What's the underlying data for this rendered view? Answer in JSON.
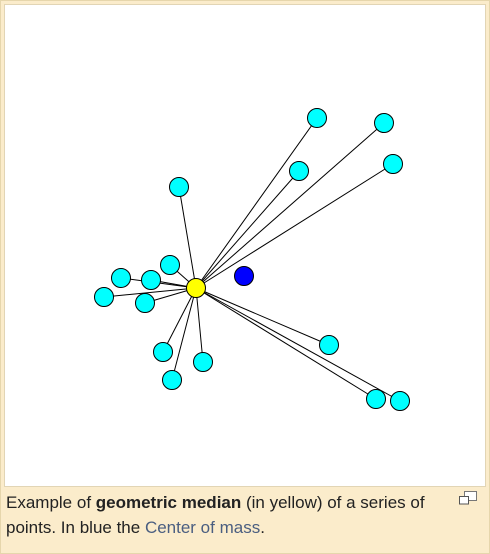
{
  "caption": {
    "prefix": "Example of ",
    "bold_term": "geometric median",
    "middle": " (in yellow) of a series of points. In blue the ",
    "link_text": "Center of mass",
    "suffix": "."
  },
  "icons": {
    "enlarge": "magnify-icon"
  },
  "colors": {
    "panel_background": "#fbeccb",
    "image_background": "#ffffff",
    "point_fill": "#00ffff",
    "median_fill": "#ffff00",
    "center_of_mass_fill": "#0000ff",
    "edge_stroke": "#000000",
    "link_text": "#4a5e80"
  }
}
